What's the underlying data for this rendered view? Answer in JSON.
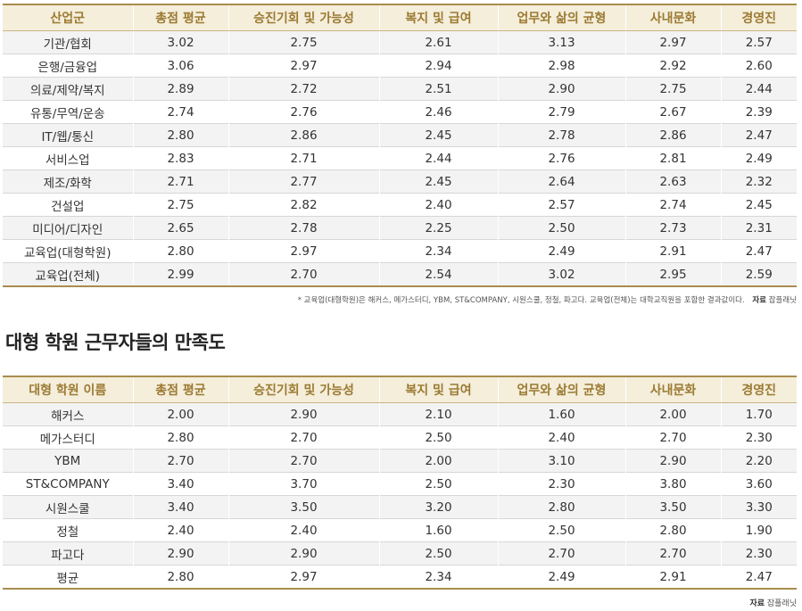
{
  "table1": {
    "headers": [
      "산업군",
      "총점 평균",
      "승진기회 및 가능성",
      "복지 및 급여",
      "업무와 삶의 균형",
      "사내문화",
      "경영진"
    ],
    "rows": [
      [
        "기관/협회",
        "3.02",
        "2.75",
        "2.61",
        "3.13",
        "2.97",
        "2.57"
      ],
      [
        "은행/금융업",
        "3.06",
        "2.97",
        "2.94",
        "2.98",
        "2.92",
        "2.60"
      ],
      [
        "의료/제약/복지",
        "2.89",
        "2.72",
        "2.51",
        "2.90",
        "2.75",
        "2.44"
      ],
      [
        "유통/무역/운송",
        "2.74",
        "2.76",
        "2.46",
        "2.79",
        "2.67",
        "2.39"
      ],
      [
        "IT/웹/통신",
        "2.80",
        "2.86",
        "2.45",
        "2.78",
        "2.86",
        "2.47"
      ],
      [
        "서비스업",
        "2.83",
        "2.71",
        "2.44",
        "2.76",
        "2.81",
        "2.49"
      ],
      [
        "제조/화학",
        "2.71",
        "2.77",
        "2.45",
        "2.64",
        "2.63",
        "2.32"
      ],
      [
        "건설업",
        "2.75",
        "2.82",
        "2.40",
        "2.57",
        "2.74",
        "2.45"
      ],
      [
        "미디어/디자인",
        "2.65",
        "2.78",
        "2.25",
        "2.50",
        "2.73",
        "2.31"
      ],
      [
        "교육업(대형학원)",
        "2.80",
        "2.97",
        "2.34",
        "2.49",
        "2.91",
        "2.47"
      ],
      [
        "교육업(전체)",
        "2.99",
        "2.70",
        "2.54",
        "3.02",
        "2.95",
        "2.59"
      ]
    ]
  },
  "footnote": {
    "text": "* 교육업(대형학원)은 해커스, 메가스터디, YBM, ST&COMPANY, 시원스쿨, 정철, 파고다. 교육업(전체)는 대학교직원을 포함한 결과값이다.",
    "source_label": "자료",
    "source_name": "잡플래닛"
  },
  "section_title": "대형 학원 근무자들의 만족도",
  "table2": {
    "headers": [
      "대형 학원 이름",
      "총점 평균",
      "승진기회 및 가능성",
      "복지 및 급여",
      "업무와 삶의 균형",
      "사내문화",
      "경영진"
    ],
    "rows": [
      [
        "해커스",
        "2.00",
        "2.90",
        "2.10",
        "1.60",
        "2.00",
        "1.70"
      ],
      [
        "메가스터디",
        "2.80",
        "2.70",
        "2.50",
        "2.40",
        "2.70",
        "2.30"
      ],
      [
        "YBM",
        "2.70",
        "2.70",
        "2.00",
        "3.10",
        "2.90",
        "2.20"
      ],
      [
        "ST&COMPANY",
        "3.40",
        "3.70",
        "2.50",
        "2.30",
        "3.80",
        "3.60"
      ],
      [
        "시원스쿨",
        "3.40",
        "3.50",
        "3.20",
        "2.80",
        "3.50",
        "3.30"
      ],
      [
        "정철",
        "2.40",
        "2.40",
        "1.60",
        "2.50",
        "2.80",
        "1.90"
      ],
      [
        "파고다",
        "2.90",
        "2.90",
        "2.50",
        "2.70",
        "2.70",
        "2.30"
      ],
      [
        "평균",
        "2.80",
        "2.97",
        "2.34",
        "2.49",
        "2.91",
        "2.47"
      ]
    ]
  },
  "source": {
    "label": "자료",
    "name": "잡플래닛"
  },
  "colors": {
    "header_bg": "#f4eedb",
    "header_text": "#9c7a32",
    "rule": "#a88d4e",
    "stripe": "#f3f3f3"
  }
}
